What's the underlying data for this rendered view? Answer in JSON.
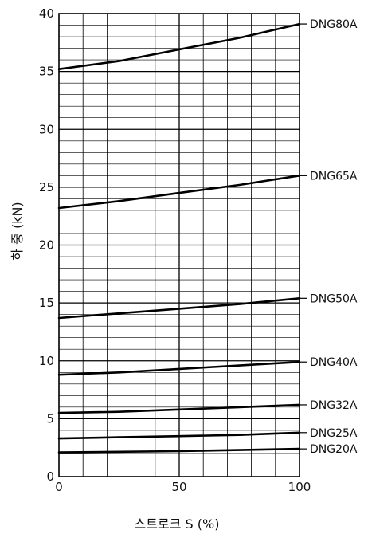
{
  "chart_data": {
    "type": "line",
    "xlabel": "스트로크 S (%)",
    "ylabel": "하 중 (kN)",
    "xlim": [
      0,
      100
    ],
    "ylim": [
      0,
      40
    ],
    "x_ticks": [
      0,
      50,
      100
    ],
    "y_ticks": [
      0,
      5,
      10,
      15,
      20,
      25,
      30,
      35,
      40
    ],
    "x_minor_step": 10,
    "y_minor_step": 1,
    "grid": true,
    "legend": "none",
    "series_labels_position": "right-end",
    "colors": {
      "line": "#000000",
      "grid": "#000000"
    },
    "series": [
      {
        "name": "DNG80A",
        "x": [
          0,
          25,
          50,
          75,
          100
        ],
        "y": [
          35.2,
          35.9,
          36.9,
          37.9,
          39.1
        ]
      },
      {
        "name": "DNG65A",
        "x": [
          0,
          25,
          50,
          75,
          100
        ],
        "y": [
          23.2,
          23.8,
          24.5,
          25.2,
          26.0
        ]
      },
      {
        "name": "DNG50A",
        "x": [
          0,
          25,
          50,
          75,
          100
        ],
        "y": [
          13.7,
          14.1,
          14.5,
          14.9,
          15.4
        ]
      },
      {
        "name": "DNG40A",
        "x": [
          0,
          25,
          50,
          75,
          100
        ],
        "y": [
          8.8,
          9.0,
          9.3,
          9.6,
          9.9
        ]
      },
      {
        "name": "DNG32A",
        "x": [
          0,
          25,
          50,
          75,
          100
        ],
        "y": [
          5.5,
          5.6,
          5.8,
          6.0,
          6.2
        ]
      },
      {
        "name": "DNG25A",
        "x": [
          0,
          25,
          50,
          75,
          100
        ],
        "y": [
          3.3,
          3.4,
          3.5,
          3.6,
          3.8
        ]
      },
      {
        "name": "DNG20A",
        "x": [
          0,
          25,
          50,
          75,
          100
        ],
        "y": [
          2.1,
          2.15,
          2.2,
          2.3,
          2.4
        ]
      }
    ]
  }
}
